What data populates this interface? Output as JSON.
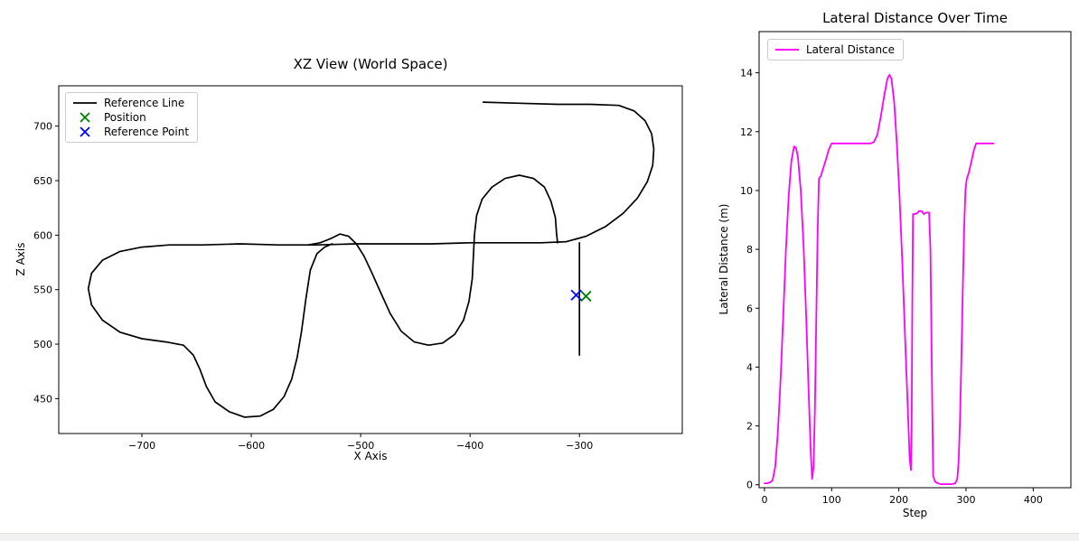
{
  "page": {
    "background": "#ffffff",
    "bottom_bar_color": "#f2f1ef"
  },
  "colors": {
    "reference_line": "#000000",
    "position_marker": "#008000",
    "reference_point_marker": "#0000ff",
    "lateral_distance_line": "#ff00ff",
    "axis": "#000000",
    "legend_border": "#cccccc"
  },
  "chart_data": [
    {
      "type": "line",
      "title": "XZ View (World Space)",
      "xlabel": "X Axis",
      "ylabel": "Z Axis",
      "xlim": [
        -776,
        -206
      ],
      "ylim": [
        418,
        737
      ],
      "grid": false,
      "xticks": [
        {
          "v": -700,
          "label": "−700"
        },
        {
          "v": -600,
          "label": "−600"
        },
        {
          "v": -500,
          "label": "−500"
        },
        {
          "v": -400,
          "label": "−400"
        },
        {
          "v": -300,
          "label": "−300"
        }
      ],
      "yticks": [
        {
          "v": 450,
          "label": "450"
        },
        {
          "v": 500,
          "label": "500"
        },
        {
          "v": 550,
          "label": "550"
        },
        {
          "v": 600,
          "label": "600"
        },
        {
          "v": 650,
          "label": "650"
        },
        {
          "v": 700,
          "label": "700"
        }
      ],
      "legend": {
        "position": "upper left",
        "entries": [
          {
            "label": "Reference Line",
            "marker": "line",
            "color": "#000000"
          },
          {
            "label": "Position",
            "marker": "x",
            "color": "#008000"
          },
          {
            "label": "Reference Point",
            "marker": "x",
            "color": "#0000ff"
          }
        ]
      },
      "series": [
        {
          "name": "Reference Line",
          "color": "#000000",
          "linewidth": 1.7,
          "segments": [
            [
              [
                -388,
                722
              ],
              [
                -355,
                721
              ],
              [
                -320,
                720
              ],
              [
                -290,
                720
              ],
              [
                -264,
                719
              ],
              [
                -250,
                714
              ],
              [
                -240,
                705
              ],
              [
                -234,
                693
              ],
              [
                -232,
                679
              ],
              [
                -233,
                664
              ],
              [
                -238,
                649
              ],
              [
                -247,
                634
              ],
              [
                -260,
                620
              ],
              [
                -276,
                608
              ],
              [
                -294,
                599
              ],
              [
                -312,
                594
              ],
              [
                -335,
                593
              ],
              [
                -365,
                593
              ],
              [
                -400,
                593
              ],
              [
                -435,
                592
              ],
              [
                -470,
                592
              ],
              [
                -505,
                592
              ],
              [
                -540,
                591
              ],
              [
                -575,
                591
              ],
              [
                -610,
                592
              ],
              [
                -645,
                591
              ],
              [
                -675,
                591
              ],
              [
                -700,
                589
              ],
              [
                -720,
                585
              ],
              [
                -736,
                577
              ],
              [
                -746,
                565
              ],
              [
                -749,
                551
              ],
              [
                -746,
                536
              ],
              [
                -736,
                522
              ],
              [
                -720,
                511
              ],
              [
                -700,
                505
              ],
              [
                -678,
                502
              ],
              [
                -662,
                499
              ],
              [
                -653,
                490
              ],
              [
                -647,
                477
              ],
              [
                -641,
                461
              ],
              [
                -633,
                447
              ],
              [
                -620,
                438
              ],
              [
                -606,
                433
              ],
              [
                -592,
                434
              ],
              [
                -580,
                440
              ],
              [
                -570,
                452
              ],
              [
                -563,
                468
              ],
              [
                -558,
                488
              ],
              [
                -554,
                512
              ],
              [
                -550,
                542
              ],
              [
                -546,
                568
              ],
              [
                -540,
                583
              ],
              [
                -533,
                589
              ],
              [
                -526,
                592
              ]
            ],
            [
              [
                -548,
                591
              ],
              [
                -537,
                593
              ],
              [
                -527,
                597
              ],
              [
                -519,
                601
              ],
              [
                -511,
                599
              ],
              [
                -504,
                592
              ],
              [
                -497,
                581
              ],
              [
                -490,
                566
              ],
              [
                -482,
                548
              ],
              [
                -473,
                528
              ],
              [
                -463,
                512
              ],
              [
                -451,
                502
              ],
              [
                -438,
                499
              ],
              [
                -425,
                501
              ],
              [
                -414,
                509
              ],
              [
                -406,
                522
              ],
              [
                -401,
                539
              ],
              [
                -398,
                560
              ],
              [
                -397,
                580
              ],
              [
                -396,
                600
              ],
              [
                -394,
                618
              ],
              [
                -389,
                633
              ],
              [
                -380,
                644
              ],
              [
                -368,
                652
              ],
              [
                -355,
                655
              ],
              [
                -342,
                652
              ],
              [
                -332,
                644
              ],
              [
                -326,
                631
              ],
              [
                -322,
                616
              ],
              [
                -321,
                602
              ],
              [
                -320,
                593
              ]
            ],
            [
              [
                -300,
                593
              ],
              [
                -300,
                560
              ],
              [
                -300,
                520
              ],
              [
                -300,
                490
              ]
            ]
          ]
        }
      ],
      "markers": [
        {
          "name": "Position",
          "x": -294,
          "y": 544,
          "style": "x",
          "color": "#008000"
        },
        {
          "name": "Reference Point",
          "x": -303,
          "y": 545,
          "style": "x",
          "color": "#0000ff"
        }
      ]
    },
    {
      "type": "line",
      "title": "Lateral Distance Over Time",
      "xlabel": "Step",
      "ylabel": "Lateral Distance (m)",
      "xlim": [
        -8,
        456
      ],
      "ylim": [
        -0.1,
        15.4
      ],
      "grid": false,
      "xticks": [
        {
          "v": 0,
          "label": "0"
        },
        {
          "v": 100,
          "label": "100"
        },
        {
          "v": 200,
          "label": "200"
        },
        {
          "v": 300,
          "label": "300"
        },
        {
          "v": 400,
          "label": "400"
        }
      ],
      "yticks": [
        {
          "v": 0,
          "label": "0"
        },
        {
          "v": 2,
          "label": "2"
        },
        {
          "v": 4,
          "label": "4"
        },
        {
          "v": 6,
          "label": "6"
        },
        {
          "v": 8,
          "label": "8"
        },
        {
          "v": 10,
          "label": "10"
        },
        {
          "v": 12,
          "label": "12"
        },
        {
          "v": 14,
          "label": "14"
        }
      ],
      "legend": {
        "position": "upper left",
        "entries": [
          {
            "label": "Lateral Distance",
            "marker": "line",
            "color": "#ff00ff"
          }
        ]
      },
      "series": [
        {
          "name": "Lateral Distance",
          "color": "#ff00ff",
          "linewidth": 1.8,
          "segments": [
            [
              [
                0,
                0.05
              ],
              [
                4,
                0.05
              ],
              [
                8,
                0.08
              ],
              [
                12,
                0.15
              ],
              [
                16,
                0.6
              ],
              [
                20,
                1.8
              ],
              [
                24,
                3.6
              ],
              [
                28,
                5.8
              ],
              [
                32,
                8.0
              ],
              [
                36,
                9.8
              ],
              [
                40,
                11.0
              ],
              [
                44,
                11.5
              ],
              [
                47,
                11.45
              ],
              [
                50,
                11.1
              ],
              [
                54,
                10.0
              ],
              [
                58,
                8.2
              ],
              [
                62,
                5.8
              ],
              [
                66,
                3.0
              ],
              [
                69,
                1.0
              ],
              [
                71,
                0.2
              ],
              [
                73,
                0.6
              ],
              [
                75,
                2.5
              ],
              [
                77,
                5.5
              ],
              [
                79,
                8.5
              ],
              [
                81,
                10.4
              ],
              [
                84,
                10.5
              ],
              [
                88,
                10.8
              ],
              [
                92,
                11.1
              ],
              [
                96,
                11.4
              ],
              [
                100,
                11.6
              ],
              [
                110,
                11.6
              ],
              [
                120,
                11.6
              ],
              [
                130,
                11.6
              ],
              [
                140,
                11.6
              ],
              [
                150,
                11.6
              ],
              [
                158,
                11.6
              ],
              [
                163,
                11.65
              ],
              [
                168,
                11.9
              ],
              [
                173,
                12.5
              ],
              [
                178,
                13.2
              ],
              [
                183,
                13.8
              ],
              [
                186,
                13.93
              ],
              [
                189,
                13.8
              ],
              [
                193,
                13.0
              ],
              [
                197,
                11.6
              ],
              [
                201,
                9.8
              ],
              [
                205,
                7.6
              ],
              [
                209,
                5.2
              ],
              [
                213,
                2.8
              ],
              [
                216,
                0.9
              ],
              [
                218,
                0.5
              ],
              [
                219,
                2.0
              ],
              [
                220,
                6.0
              ],
              [
                221,
                9.2
              ],
              [
                225,
                9.2
              ],
              [
                228,
                9.25
              ],
              [
                230,
                9.3
              ],
              [
                234,
                9.3
              ],
              [
                237,
                9.2
              ],
              [
                241,
                9.25
              ],
              [
                245,
                9.25
              ],
              [
                247,
                8.0
              ],
              [
                249,
                4.0
              ],
              [
                251,
                0.3
              ],
              [
                254,
                0.1
              ],
              [
                258,
                0.05
              ],
              [
                263,
                0.02
              ],
              [
                270,
                0.02
              ],
              [
                278,
                0.02
              ],
              [
                284,
                0.05
              ],
              [
                287,
                0.2
              ],
              [
                289,
                0.8
              ],
              [
                291,
                2.2
              ],
              [
                293,
                4.2
              ],
              [
                295,
                6.5
              ],
              [
                297,
                8.6
              ],
              [
                299,
                10.0
              ],
              [
                301,
                10.4
              ],
              [
                304,
                10.6
              ],
              [
                308,
                11.0
              ],
              [
                312,
                11.4
              ],
              [
                315,
                11.6
              ],
              [
                320,
                11.6
              ],
              [
                326,
                11.6
              ],
              [
                332,
                11.6
              ],
              [
                338,
                11.6
              ],
              [
                341,
                11.6
              ]
            ]
          ]
        }
      ],
      "markers": []
    }
  ]
}
